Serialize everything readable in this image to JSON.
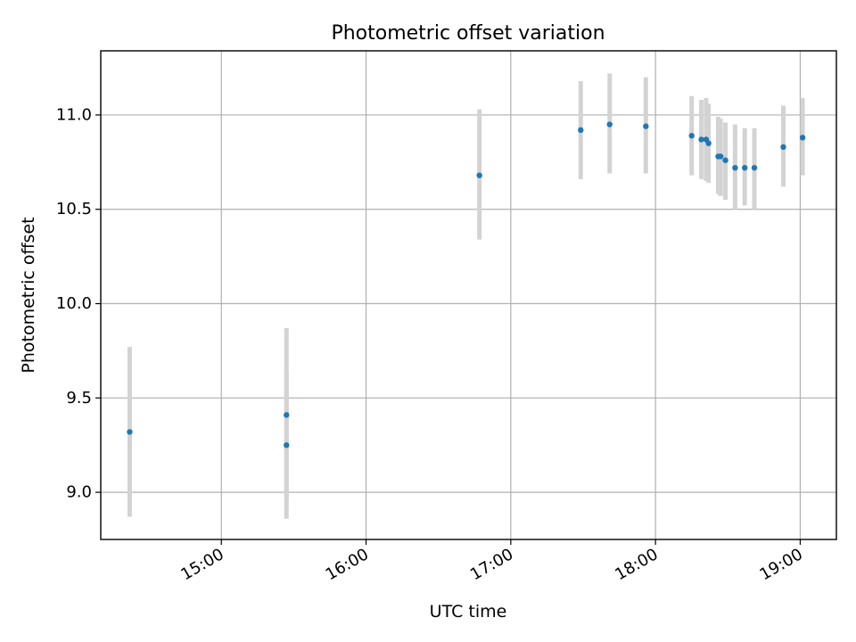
{
  "chart_data": {
    "type": "scatter",
    "title": "Photometric offset variation",
    "xlabel": "UTC time",
    "ylabel": "Photometric offset",
    "xlim": [
      "14:10",
      "19:15"
    ],
    "ylim": [
      8.75,
      11.34
    ],
    "grid": true,
    "x_ticks": [
      "15:00",
      "16:00",
      "17:00",
      "18:00",
      "19:00"
    ],
    "y_ticks": [
      "9.0",
      "9.5",
      "10.0",
      "10.5",
      "11.0"
    ],
    "marker_color": "#1f77b4",
    "errorbar_color": "#d3d3d3",
    "points": [
      {
        "x": "14:22",
        "y": 9.32,
        "yerr_low": 8.87,
        "yerr_high": 9.77
      },
      {
        "x": "15:27",
        "y": 9.41,
        "yerr_low": 8.96,
        "yerr_high": 9.87
      },
      {
        "x": "15:27",
        "y": 9.25,
        "yerr_low": 8.86,
        "yerr_high": 9.64
      },
      {
        "x": "16:47",
        "y": 10.68,
        "yerr_low": 10.34,
        "yerr_high": 11.03
      },
      {
        "x": "17:29",
        "y": 10.92,
        "yerr_low": 10.66,
        "yerr_high": 11.18
      },
      {
        "x": "17:41",
        "y": 10.95,
        "yerr_low": 10.69,
        "yerr_high": 11.22
      },
      {
        "x": "17:56",
        "y": 10.94,
        "yerr_low": 10.69,
        "yerr_high": 11.2
      },
      {
        "x": "18:15",
        "y": 10.89,
        "yerr_low": 10.68,
        "yerr_high": 11.1
      },
      {
        "x": "18:19",
        "y": 10.87,
        "yerr_low": 10.66,
        "yerr_high": 11.08
      },
      {
        "x": "18:21",
        "y": 10.87,
        "yerr_low": 10.65,
        "yerr_high": 11.09
      },
      {
        "x": "18:22",
        "y": 10.85,
        "yerr_low": 10.64,
        "yerr_high": 11.06
      },
      {
        "x": "18:26",
        "y": 10.78,
        "yerr_low": 10.58,
        "yerr_high": 10.99
      },
      {
        "x": "18:27",
        "y": 10.78,
        "yerr_low": 10.57,
        "yerr_high": 10.98
      },
      {
        "x": "18:29",
        "y": 10.76,
        "yerr_low": 10.55,
        "yerr_high": 10.96
      },
      {
        "x": "18:33",
        "y": 10.72,
        "yerr_low": 10.5,
        "yerr_high": 10.95
      },
      {
        "x": "18:37",
        "y": 10.72,
        "yerr_low": 10.52,
        "yerr_high": 10.93
      },
      {
        "x": "18:41",
        "y": 10.72,
        "yerr_low": 10.5,
        "yerr_high": 10.93
      },
      {
        "x": "18:53",
        "y": 10.83,
        "yerr_low": 10.62,
        "yerr_high": 11.05
      },
      {
        "x": "19:01",
        "y": 10.88,
        "yerr_low": 10.68,
        "yerr_high": 11.09
      }
    ]
  }
}
